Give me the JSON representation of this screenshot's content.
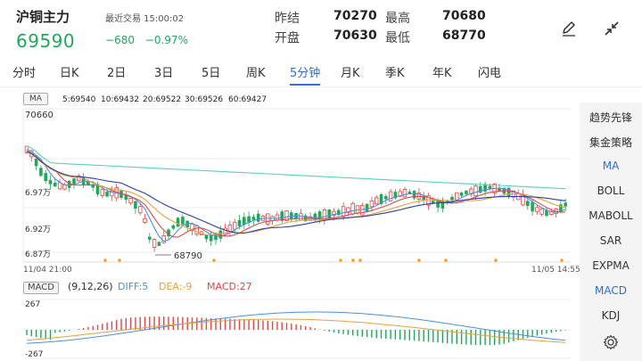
{
  "header": {
    "title": "沪铜主力",
    "trade_time": "最近交易 15:00:02",
    "price": "69590",
    "change": "−680",
    "change_pct": "−0.97%",
    "stats": [
      {
        "key": "昨结",
        "value": "70270"
      },
      {
        "key": "最高",
        "value": "70680"
      },
      {
        "key": "开盘",
        "value": "70630"
      },
      {
        "key": "最低",
        "value": "68770"
      }
    ],
    "edit_icon": "pen-icon",
    "collapse_icon": "collapse-arrows-icon"
  },
  "tabs": [
    "分时",
    "日K",
    "2日",
    "3日",
    "5日",
    "周K",
    "5分钟",
    "月K",
    "季K",
    "年K",
    "闪电"
  ],
  "active_tab": "5分钟",
  "ma_legend": {
    "tag": "MA",
    "items": [
      {
        "label": "5:69540",
        "color": "#4a90e2"
      },
      {
        "label": "10:69432",
        "color": "#e04848"
      },
      {
        "label": "20:69522",
        "color": "#e8a040"
      },
      {
        "label": "30:69526",
        "color": "#2a3fa8"
      },
      {
        "label": "60:69427",
        "color": "#5ad0b8"
      }
    ]
  },
  "price_axis": {
    "top_label": "70660",
    "labels": [
      "6.97万",
      "6.92万",
      "6.87万"
    ],
    "low_annotation": "68790"
  },
  "time_axis": {
    "start": "11/04 21:00",
    "end": "11/05 14:55"
  },
  "right_panel": {
    "items": [
      "趋势先锋",
      "集金策略",
      "MA",
      "BOLL",
      "MABOLL",
      "SAR",
      "EXPMA",
      "MACD",
      "KDJ"
    ],
    "highlighted": [
      "MA",
      "MACD"
    ],
    "settings_icon": "gear-icon"
  },
  "macd": {
    "tag": "MACD",
    "params": "(9,12,26)",
    "diff": "DIFF:5",
    "dea": "DEA:-9",
    "macd": "MACD:27",
    "diff_color": "#4a90e2",
    "dea_color": "#e8a040",
    "macd_color": "#e04848",
    "top_label": "267",
    "bottom_label": "-267"
  },
  "chart_data": {
    "type": "candlestick",
    "y_range": [
      68700,
      70700
    ],
    "ma_values": {
      "MA5": 69540,
      "MA10": 69432,
      "MA20": 69522,
      "MA30": 69526,
      "MA60": 69427
    },
    "high": 70660,
    "low": 68790
  },
  "colors": {
    "up": "#e04848",
    "down": "#1fa85a",
    "accent": "#2f6fd6"
  }
}
